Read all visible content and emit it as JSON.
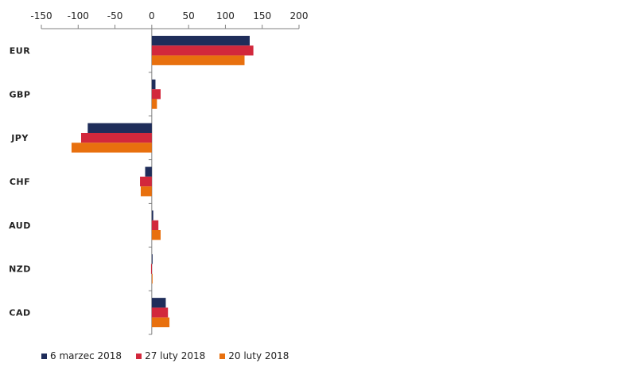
{
  "chart_data": {
    "type": "bar",
    "orientation": "horizontal",
    "title": "",
    "xlabel": "",
    "ylabel": "",
    "xlim": [
      -150,
      200
    ],
    "xticks": [
      -150,
      -100,
      -50,
      0,
      50,
      100,
      150,
      200
    ],
    "x_axis_position": "top",
    "grid": false,
    "legend_position": "bottom",
    "categories": [
      "EUR",
      "GBP",
      "JPY",
      "CHF",
      "AUD",
      "NZD",
      "CAD"
    ],
    "series": [
      {
        "name": "6 marzec 2018",
        "color": "#1f2d5a",
        "values": [
          133,
          5,
          -87,
          -9,
          2,
          0,
          19
        ]
      },
      {
        "name": "27 luty 2018",
        "color": "#d2283c",
        "values": [
          138,
          12,
          -96,
          -16,
          9,
          -1,
          22
        ]
      },
      {
        "name": "20 luty 2018",
        "color": "#e8700e",
        "values": [
          126,
          7,
          -109,
          -15,
          12,
          0,
          24
        ]
      }
    ]
  }
}
